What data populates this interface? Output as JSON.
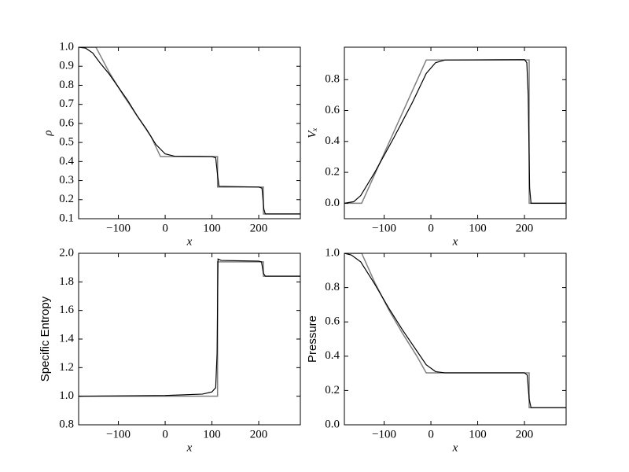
{
  "chart_data": [
    {
      "type": "line",
      "ylabel": "ρ",
      "xlabel": "x",
      "xlim": [
        -185,
        289
      ],
      "ylim": [
        0.1,
        1.0
      ],
      "xticks": [
        {
          "value": -100,
          "label": "−100"
        },
        0,
        100,
        200
      ],
      "yticks": [
        0.1,
        0.2,
        0.3,
        0.4,
        0.5,
        0.6,
        0.7,
        0.8,
        0.9,
        {
          "value": 1,
          "label": "1.0"
        }
      ],
      "series": [
        {
          "color": "#808080",
          "x": [
            -185,
            -148,
            -120,
            -90,
            -60,
            -30,
            -10,
            112,
            112,
            210,
            210,
            289
          ],
          "values": [
            1.0,
            1.0,
            0.87,
            0.75,
            0.64,
            0.53,
            0.426,
            0.426,
            0.266,
            0.266,
            0.125,
            0.125
          ]
        },
        {
          "color": "#000000",
          "x": [
            -185,
            -170,
            -155,
            -140,
            -120,
            -100,
            -80,
            -60,
            -40,
            -20,
            0,
            20,
            100,
            108,
            112,
            115,
            200,
            207,
            211,
            214,
            289
          ],
          "values": [
            1.0,
            0.995,
            0.97,
            0.92,
            0.86,
            0.79,
            0.72,
            0.64,
            0.57,
            0.49,
            0.44,
            0.428,
            0.426,
            0.42,
            0.33,
            0.27,
            0.266,
            0.26,
            0.15,
            0.125,
            0.125
          ]
        }
      ]
    },
    {
      "type": "line",
      "ylabel": "Vₓ",
      "xlabel": "x",
      "xlim": [
        -185,
        289
      ],
      "ylim": [
        -0.1,
        1.01
      ],
      "xticks": [
        {
          "value": -100,
          "label": "−100"
        },
        0,
        100,
        200
      ],
      "yticks": [
        {
          "value": 0,
          "label": "0.0"
        },
        0.2,
        0.4,
        0.6,
        0.8
      ],
      "series": [
        {
          "color": "#808080",
          "x": [
            -185,
            -148,
            -10,
            210,
            210,
            289
          ],
          "values": [
            0,
            0,
            0.927,
            0.927,
            0,
            0
          ]
        },
        {
          "color": "#000000",
          "x": [
            -185,
            -165,
            -150,
            -120,
            -80,
            -40,
            -10,
            10,
            30,
            200,
            205,
            208,
            211,
            214,
            289
          ],
          "values": [
            0,
            0.01,
            0.05,
            0.2,
            0.42,
            0.65,
            0.84,
            0.91,
            0.927,
            0.93,
            0.91,
            0.7,
            0.1,
            0,
            0
          ]
        }
      ]
    },
    {
      "type": "line",
      "ylabel": "Specific Entropy",
      "xlabel": "x",
      "xlim": [
        -185,
        289
      ],
      "ylim": [
        0.8,
        2.0
      ],
      "xticks": [
        {
          "value": -100,
          "label": "−100"
        },
        0,
        100,
        200
      ],
      "yticks": [
        0.8,
        {
          "value": 1,
          "label": "1.0"
        },
        1.2,
        1.4,
        1.6,
        1.8,
        {
          "value": 2,
          "label": "2.0"
        }
      ],
      "series": [
        {
          "color": "#808080",
          "x": [
            -185,
            112,
            112,
            210,
            210,
            289
          ],
          "values": [
            1.0,
            1.0,
            1.94,
            1.94,
            1.84,
            1.84
          ]
        },
        {
          "color": "#000000",
          "x": [
            -185,
            0,
            80,
            100,
            108,
            111,
            113,
            120,
            200,
            206,
            210,
            214,
            289
          ],
          "values": [
            1.0,
            1.005,
            1.015,
            1.03,
            1.06,
            1.3,
            1.96,
            1.95,
            1.945,
            1.94,
            1.86,
            1.84,
            1.84
          ]
        }
      ]
    },
    {
      "type": "line",
      "ylabel": "Pressure",
      "xlabel": "x",
      "xlim": [
        -185,
        289
      ],
      "ylim": [
        0,
        1.0
      ],
      "xticks": [
        {
          "value": -100,
          "label": "−100"
        },
        0,
        100,
        200
      ],
      "yticks": [
        {
          "value": 0,
          "label": "0.0"
        },
        0.2,
        0.4,
        0.6,
        0.8,
        {
          "value": 1,
          "label": "1.0"
        }
      ],
      "series": [
        {
          "color": "#808080",
          "x": [
            -185,
            -148,
            -120,
            -90,
            -60,
            -30,
            -10,
            210,
            210,
            289
          ],
          "values": [
            1.0,
            1.0,
            0.83,
            0.67,
            0.53,
            0.4,
            0.303,
            0.303,
            0.1,
            0.1
          ]
        },
        {
          "color": "#000000",
          "x": [
            -185,
            -170,
            -150,
            -120,
            -90,
            -60,
            -30,
            -10,
            10,
            30,
            200,
            206,
            210,
            214,
            289
          ],
          "values": [
            1.0,
            0.99,
            0.95,
            0.82,
            0.68,
            0.55,
            0.43,
            0.35,
            0.31,
            0.303,
            0.303,
            0.29,
            0.15,
            0.1,
            0.1
          ]
        }
      ]
    }
  ]
}
